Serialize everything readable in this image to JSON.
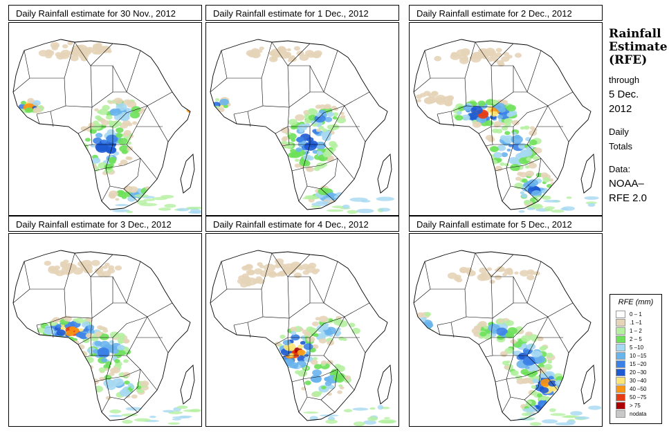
{
  "panels": [
    {
      "title": "Daily Rainfall estimate for  30 Nov., 2012",
      "variant": 0
    },
    {
      "title": "Daily Rainfall estimate for  1 Dec., 2012",
      "variant": 1
    },
    {
      "title": "Daily Rainfall estimate for  2 Dec., 2012",
      "variant": 2
    },
    {
      "title": "Daily Rainfall estimate for  3 Dec., 2012",
      "variant": 3
    },
    {
      "title": "Daily Rainfall estimate for  4 Dec., 2012",
      "variant": 4
    },
    {
      "title": "Daily Rainfall estimate for  5 Dec., 2012",
      "variant": 5
    }
  ],
  "side": {
    "title_line1": "Rainfall",
    "title_line2": "Estimate",
    "title_line3": "(RFE)",
    "through_line1": "through",
    "through_line2": "5 Dec.",
    "through_line3": "2012",
    "daily_line1": "Daily",
    "daily_line2": "Totals",
    "data_line1": "Data:",
    "data_line2": "NOAA–",
    "data_line3": "RFE 2.0"
  },
  "legend": {
    "title": "RFE (mm)",
    "items": [
      {
        "label": "0 – 1",
        "color": "#ffffff"
      },
      {
        "label": ".1 –1",
        "color": "#e6d4b8"
      },
      {
        "label": "1 – 2",
        "color": "#b4f0a0"
      },
      {
        "label": "2 – 5",
        "color": "#6ee05a"
      },
      {
        "label": "5 –10",
        "color": "#a6d8f2"
      },
      {
        "label": "10 –15",
        "color": "#6ab4ec"
      },
      {
        "label": "15 –20",
        "color": "#3c82e6"
      },
      {
        "label": "20 –30",
        "color": "#1e5ad2"
      },
      {
        "label": "30 –40",
        "color": "#fae678"
      },
      {
        "label": "40 –50",
        "color": "#fa9614"
      },
      {
        "label": "50 –75",
        "color": "#e63c14"
      },
      {
        "label": "> 75",
        "color": "#aa0000"
      },
      {
        "label": "nodata",
        "color": "#c8c8c8"
      }
    ]
  }
}
